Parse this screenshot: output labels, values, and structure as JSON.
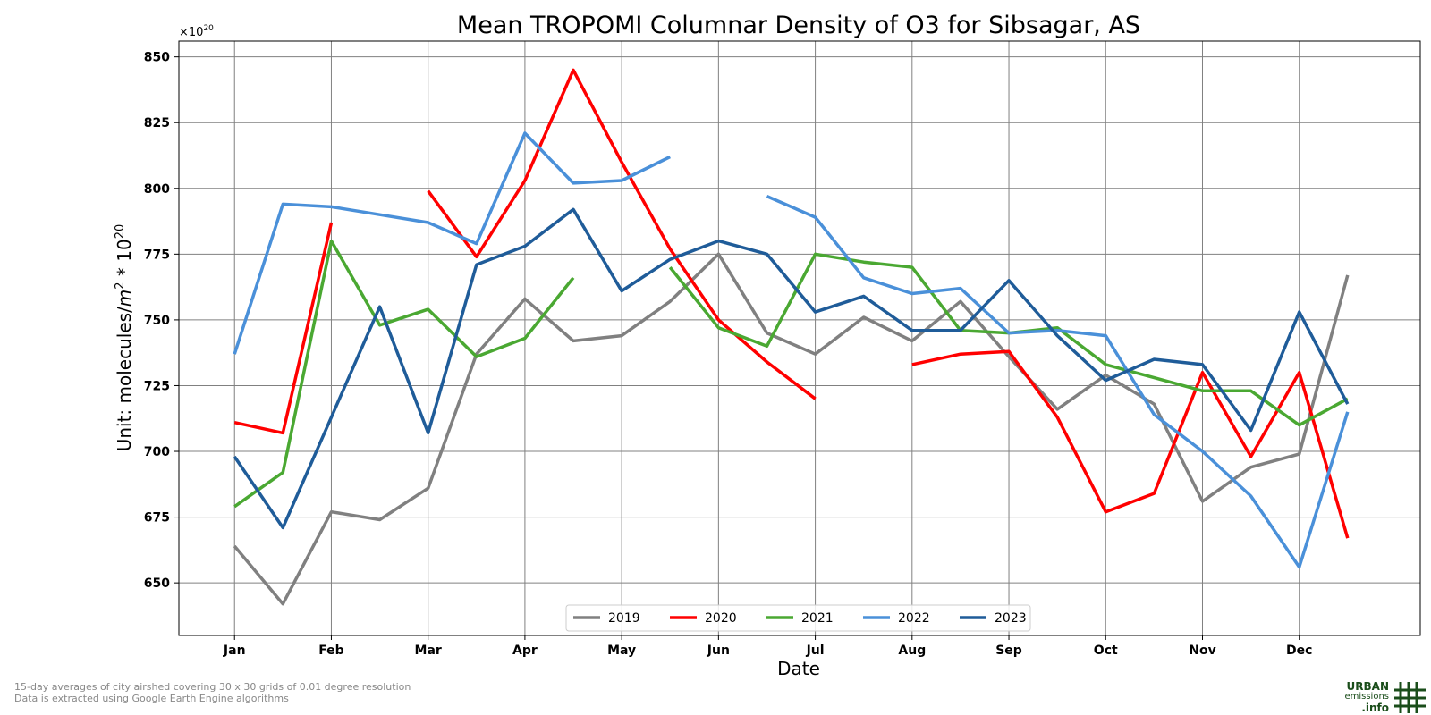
{
  "chart_data": {
    "type": "line",
    "title": "Mean TROPOMI Columnar Density of O3 for Sibsagar, AS",
    "xlabel": "Date",
    "ylabel": "Unit: molecules/m² * 10²⁰",
    "ylabel_parts": {
      "prefix": "Unit: molecules/",
      "m": "m",
      "m_exp": "2",
      "mid": " * 10",
      "exp": "20"
    },
    "y_multiplier": {
      "base": "×10",
      "exp": "20"
    },
    "ylim": [
      630,
      856
    ],
    "yticks": [
      650,
      675,
      700,
      725,
      750,
      775,
      800,
      825,
      850
    ],
    "x_tick_labels": [
      "Jan",
      "Feb",
      "Mar",
      "Apr",
      "May",
      "Jun",
      "Jul",
      "Aug",
      "Sep",
      "Oct",
      "Nov",
      "Dec"
    ],
    "x_tick_positions": [
      1,
      3,
      5,
      7,
      9,
      11,
      13,
      15,
      17,
      19,
      21,
      23
    ],
    "xlim": [
      -0.15,
      25.5
    ],
    "grid": true,
    "legend_position": "bottom-center",
    "series": [
      {
        "name": "2019",
        "color": "#808080",
        "x": [
          1,
          2,
          3,
          4,
          5,
          6,
          7,
          8,
          9,
          10,
          11,
          12,
          13,
          14,
          15,
          16,
          17,
          18,
          19,
          20,
          21,
          22,
          23,
          24
        ],
        "y": [
          664,
          642,
          677,
          674,
          686,
          737,
          758,
          742,
          744,
          757,
          775,
          745,
          737,
          751,
          742,
          757,
          736,
          716,
          729,
          718,
          681,
          694,
          699,
          767
        ]
      },
      {
        "name": "2020",
        "color": "#ff0000",
        "x": [
          1,
          2,
          3,
          null,
          5,
          6,
          7,
          8,
          9,
          10,
          11,
          12,
          13,
          null,
          15,
          16,
          17,
          18,
          19,
          20,
          21,
          22,
          23,
          24
        ],
        "y": [
          711,
          707,
          787,
          null,
          799,
          774,
          803,
          845,
          810,
          777,
          750,
          734,
          720,
          null,
          733,
          737,
          738,
          713,
          677,
          684,
          730,
          698,
          730,
          667
        ]
      },
      {
        "name": "2021",
        "color": "#4aa832",
        "x": [
          1,
          2,
          3,
          4,
          5,
          6,
          7,
          8,
          null,
          10,
          11,
          12,
          13,
          14,
          15,
          16,
          17,
          18,
          19,
          20,
          21,
          22,
          23,
          24
        ],
        "y": [
          679,
          692,
          780,
          748,
          754,
          736,
          743,
          766,
          null,
          770,
          747,
          740,
          775,
          772,
          770,
          746,
          745,
          747,
          733,
          728,
          723,
          723,
          710,
          720
        ]
      },
      {
        "name": "2022",
        "color": "#4a90d9",
        "x": [
          1,
          2,
          3,
          4,
          5,
          6,
          7,
          8,
          9,
          10,
          null,
          12,
          13,
          14,
          15,
          16,
          17,
          18,
          19,
          20,
          21,
          22,
          23,
          24
        ],
        "y": [
          737,
          794,
          793,
          790,
          787,
          779,
          821,
          802,
          803,
          812,
          null,
          797,
          789,
          766,
          760,
          762,
          745,
          746,
          744,
          714,
          700,
          683,
          656,
          715
        ]
      },
      {
        "name": "2023",
        "color": "#1f5c99",
        "x": [
          1,
          2,
          3,
          4,
          5,
          6,
          7,
          8,
          9,
          10,
          11,
          12,
          13,
          14,
          15,
          16,
          17,
          18,
          19,
          20,
          21,
          22,
          23,
          24
        ],
        "y": [
          698,
          671,
          713,
          755,
          707,
          771,
          778,
          792,
          761,
          773,
          780,
          775,
          753,
          759,
          746,
          746,
          765,
          744,
          727,
          735,
          733,
          708,
          753,
          718
        ]
      }
    ]
  },
  "footnote": {
    "line1": "15-day averages of city airshed covering 30 x 30 grids of 0.01 degree resolution",
    "line2": "Data is extracted using Google Earth Engine algorithms"
  },
  "logo": {
    "line1": "URBAN",
    "line2": "emissions",
    "line3": ".info",
    "color": "#1a4d1a"
  }
}
